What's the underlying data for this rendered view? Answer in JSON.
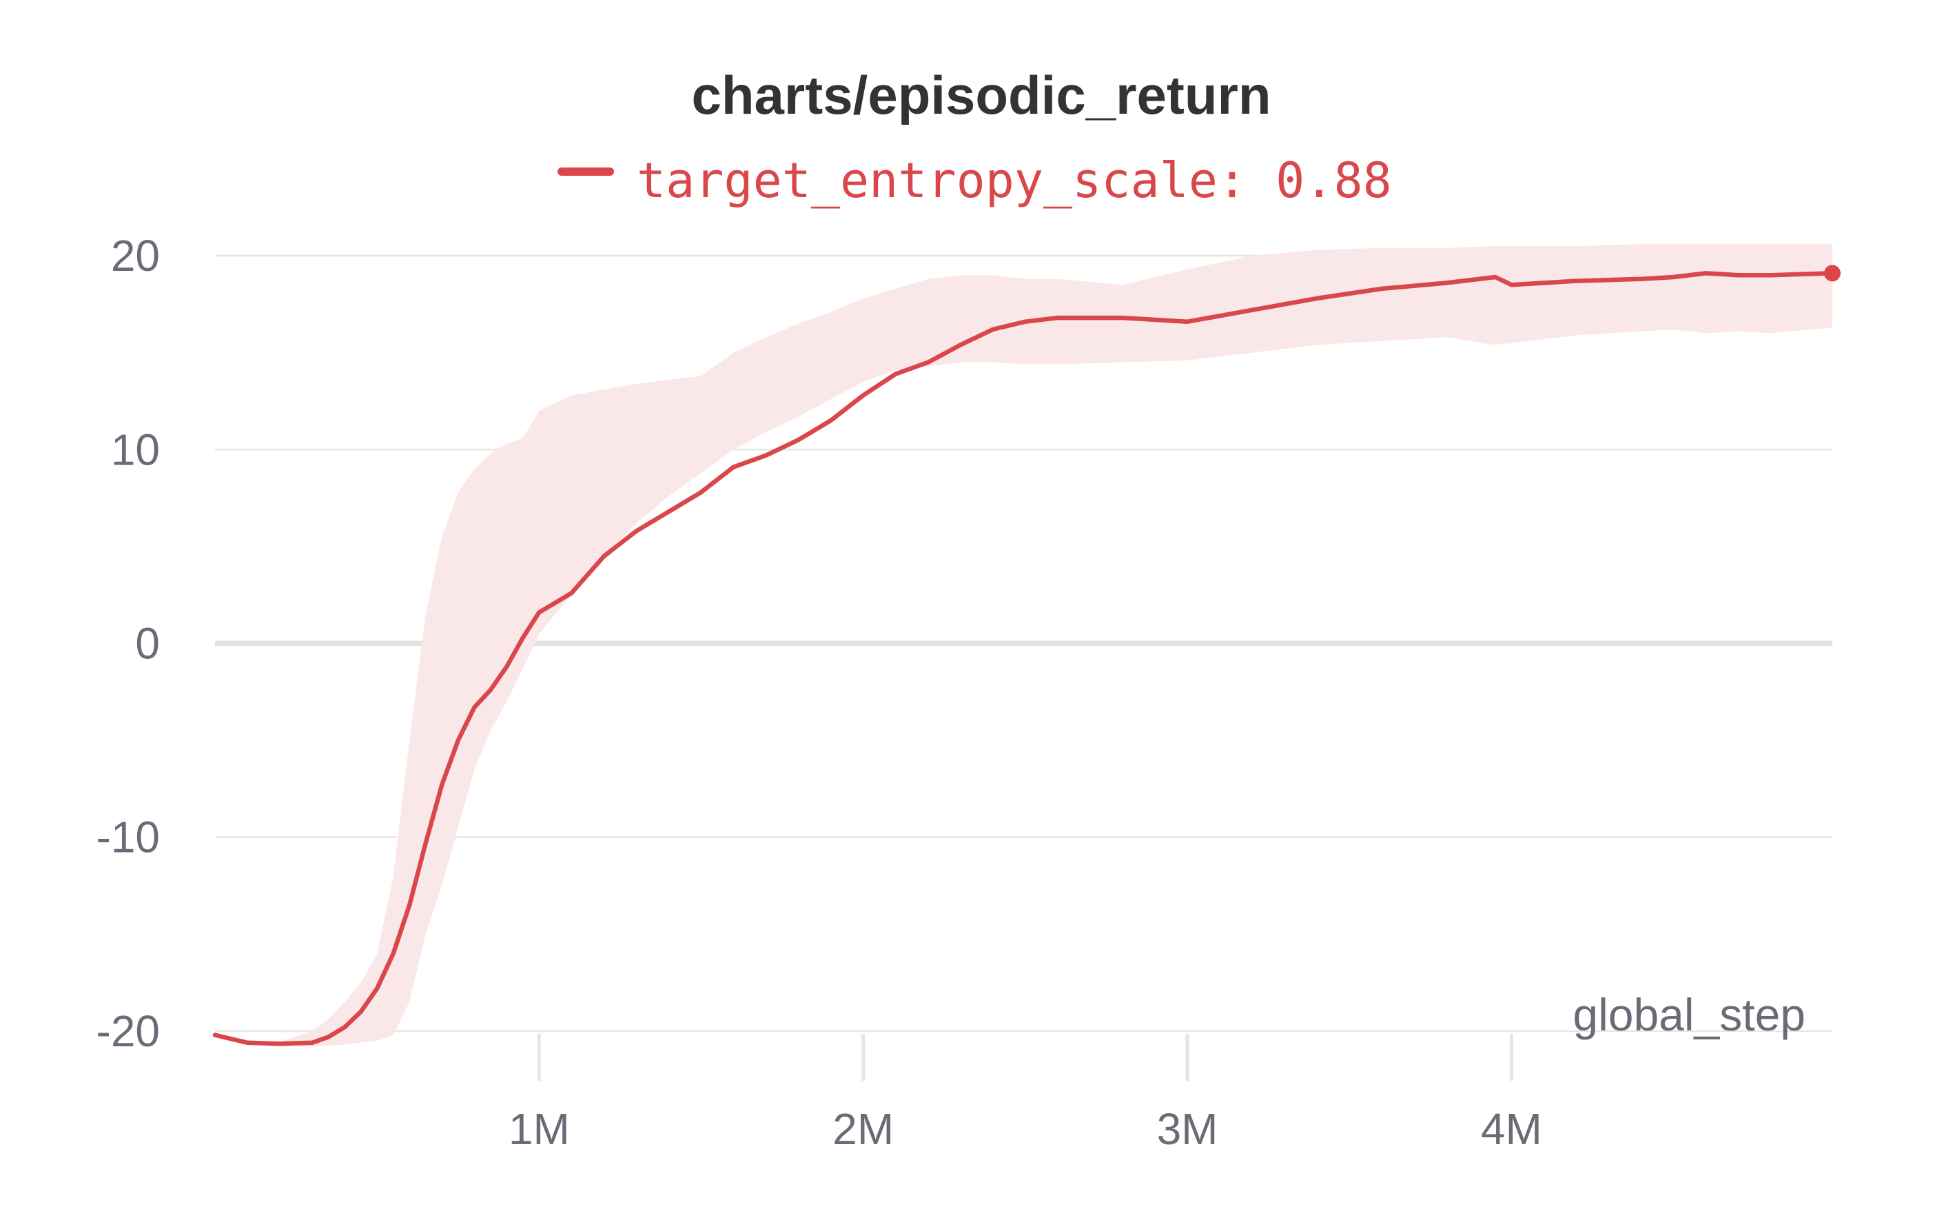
{
  "colors": {
    "line": "#d9474b",
    "band": "#fae8e9",
    "grid": "#e6e6e6",
    "zero_line": "#e2e2e2",
    "title": "#333333",
    "tick": "#6b6b78"
  },
  "chart_data": {
    "type": "line",
    "title": "charts/episodic_return",
    "xlabel": "global_step",
    "ylabel": "",
    "xlim": [
      0,
      4990000
    ],
    "ylim": [
      -20.5,
      20.5
    ],
    "x_ticks": [
      {
        "value": 1000000,
        "label": "1M"
      },
      {
        "value": 2000000,
        "label": "2M"
      },
      {
        "value": 3000000,
        "label": "3M"
      },
      {
        "value": 4000000,
        "label": "4M"
      }
    ],
    "y_ticks": [
      {
        "value": 20,
        "label": "20"
      },
      {
        "value": 10,
        "label": "10"
      },
      {
        "value": 0,
        "label": "0"
      },
      {
        "value": -10,
        "label": "-10"
      },
      {
        "value": -20,
        "label": "-20"
      }
    ],
    "grid": true,
    "legend_position": "top-center",
    "series": [
      {
        "name": "target_entropy_scale: 0.88",
        "x": [
          0,
          100000,
          200000,
          300000,
          350000,
          400000,
          450000,
          500000,
          550000,
          600000,
          650000,
          700000,
          750000,
          800000,
          850000,
          900000,
          950000,
          1000000,
          1100000,
          1200000,
          1300000,
          1400000,
          1500000,
          1600000,
          1700000,
          1800000,
          1900000,
          2000000,
          2100000,
          2200000,
          2300000,
          2400000,
          2500000,
          2600000,
          2800000,
          3000000,
          3200000,
          3400000,
          3600000,
          3800000,
          3950000,
          4000000,
          4200000,
          4400000,
          4500000,
          4600000,
          4700000,
          4800000,
          4990000
        ],
        "y": [
          -20.2,
          -20.6,
          -20.65,
          -20.6,
          -20.3,
          -19.8,
          -19.0,
          -17.8,
          -16.0,
          -13.5,
          -10.3,
          -7.3,
          -5.0,
          -3.3,
          -2.4,
          -1.2,
          0.3,
          1.6,
          2.6,
          4.5,
          5.8,
          6.8,
          7.8,
          9.1,
          9.7,
          10.5,
          11.5,
          12.8,
          13.9,
          14.5,
          15.4,
          16.2,
          16.6,
          16.8,
          16.8,
          16.6,
          17.2,
          17.8,
          18.3,
          18.6,
          18.9,
          18.5,
          18.7,
          18.8,
          18.9,
          19.1,
          19.0,
          19.0,
          19.1
        ],
        "upper": [
          -20.1,
          -20.5,
          -20.55,
          -20.0,
          -19.4,
          -18.5,
          -17.5,
          -16.0,
          -12.0,
          -5.0,
          1.5,
          5.5,
          7.8,
          9.0,
          9.8,
          10.3,
          10.6,
          12.0,
          12.8,
          13.1,
          13.4,
          13.6,
          13.8,
          15.0,
          15.8,
          16.5,
          17.1,
          17.8,
          18.3,
          18.8,
          19.0,
          19.0,
          18.8,
          18.8,
          18.5,
          19.3,
          20.0,
          20.3,
          20.4,
          20.4,
          20.5,
          20.5,
          20.5,
          20.6,
          20.6,
          20.6,
          20.6,
          20.6,
          20.6
        ],
        "lower": [
          -20.3,
          -20.7,
          -20.8,
          -20.8,
          -20.75,
          -20.7,
          -20.6,
          -20.5,
          -20.2,
          -18.5,
          -15.0,
          -12.5,
          -9.5,
          -6.5,
          -4.5,
          -3.0,
          -1.3,
          0.5,
          2.5,
          4.5,
          6.2,
          7.6,
          8.8,
          10.0,
          10.9,
          11.7,
          12.6,
          13.5,
          14.1,
          14.3,
          14.5,
          14.5,
          14.4,
          14.4,
          14.5,
          14.6,
          15.0,
          15.4,
          15.6,
          15.8,
          15.4,
          15.5,
          15.9,
          16.1,
          16.2,
          16.0,
          16.1,
          16.0,
          16.3
        ]
      }
    ]
  }
}
